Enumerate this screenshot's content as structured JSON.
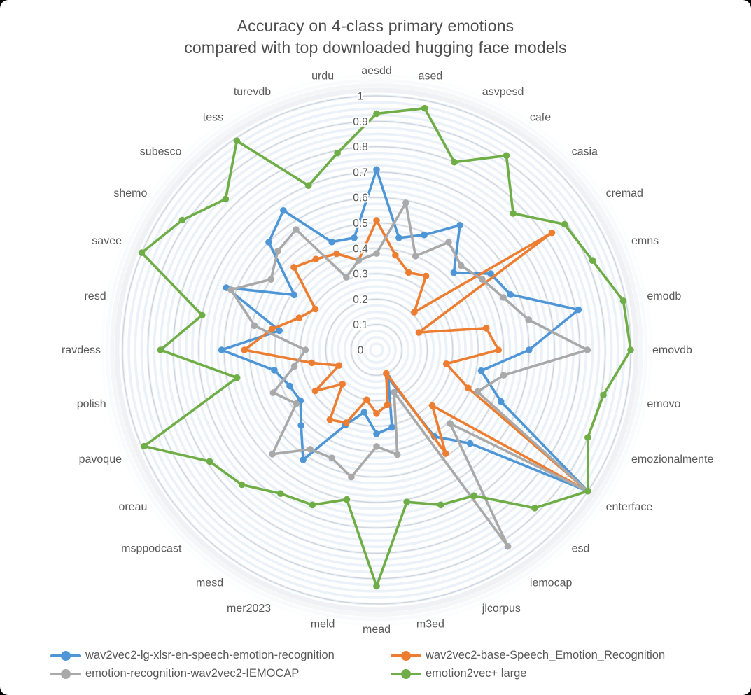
{
  "title": {
    "line1": "Accuracy on 4-class primary emotions",
    "line2": "compared with top downloaded hugging face models"
  },
  "chart_data": {
    "type": "radar",
    "categories": [
      "aesdd",
      "ased",
      "asvpesd",
      "cafe",
      "casia",
      "cremad",
      "emns",
      "emodb",
      "emovdb",
      "emovo",
      "emozionalmente",
      "enterface",
      "esd",
      "iemocap",
      "jlcorpus",
      "m3ed",
      "mead",
      "meld",
      "mer2023",
      "mesd",
      "msppodcast",
      "oreau",
      "pavoque",
      "polish",
      "ravdess",
      "resd",
      "savee",
      "shemo",
      "subesco",
      "tess",
      "turevdb",
      "urdu"
    ],
    "series": [
      {
        "name": "wav2vec2-lg-xlsr-en-speech-emotion-recognition",
        "color": "#4E96D6",
        "values": [
          0.71,
          0.45,
          0.49,
          0.59,
          0.43,
          0.54,
          0.57,
          0.81,
          0.6,
          0.42,
          0.53,
          1.0,
          0.52,
          0.41,
          0.12,
          0.31,
          0.33,
          0.25,
          0.32,
          0.52,
          0.42,
          0.36,
          0.37,
          0.41,
          0.61,
          0.39,
          0.64,
          0.39,
          0.6,
          0.66,
          0.46,
          0.45
        ]
      },
      {
        "name": "wav2vec2-base-Speech_Emotion_Recognition",
        "color": "#ED7D31",
        "values": [
          0.51,
          0.38,
          0.33,
          0.35,
          0.21,
          0.83,
          0.18,
          0.44,
          0.48,
          0.28,
          0.39,
          1.0,
          0.31,
          0.49,
          0.1,
          0.22,
          0.25,
          0.2,
          0.31,
          0.33,
          0.19,
          0.29,
          0.16,
          0.26,
          0.52,
          0.42,
          0.33,
          0.29,
          0.46,
          0.43,
          0.41,
          0.36
        ]
      },
      {
        "name": "emotion-recognition-wav2vec2-IEMOCAP",
        "color": "#A9A9A9",
        "values": [
          0.38,
          0.59,
          0.4,
          0.51,
          0.47,
          0.5,
          0.54,
          0.61,
          0.83,
          0.51,
          0.43,
          1.0,
          0.41,
          0.93,
          0.18,
          0.42,
          0.38,
          0.51,
          0.46,
          0.47,
          0.58,
          0.38,
          0.44,
          0.33,
          0.28,
          0.49,
          0.62,
          0.5,
          0.55,
          0.57,
          0.31,
          0.36
        ]
      },
      {
        "name": "emotion2vec+ large",
        "color": "#6FAD47",
        "values": [
          0.93,
          0.97,
          0.8,
          0.92,
          0.76,
          0.89,
          0.92,
          0.99,
          1.0,
          0.91,
          0.9,
          1.0,
          0.88,
          0.69,
          0.66,
          0.61,
          0.93,
          0.6,
          0.66,
          0.68,
          0.75,
          0.79,
          0.99,
          0.56,
          0.85,
          0.7,
          1.0,
          0.92,
          0.84,
          0.99,
          0.7,
          0.79
        ]
      }
    ],
    "radial_axis": {
      "min": 0,
      "max": 1,
      "ticks": [
        "0",
        "0.1",
        "0.2",
        "0.3",
        "0.4",
        "0.5",
        "0.6",
        "0.7",
        "0.8",
        "0.9",
        "1"
      ]
    },
    "grid": true,
    "legend_position": "bottom",
    "colors": {
      "category_label": "#595959",
      "tick_label": "#595959",
      "major_ring": "#cdd2d9",
      "minor_ring": "#e9eff7",
      "title_text": "#4d4d4d"
    }
  }
}
